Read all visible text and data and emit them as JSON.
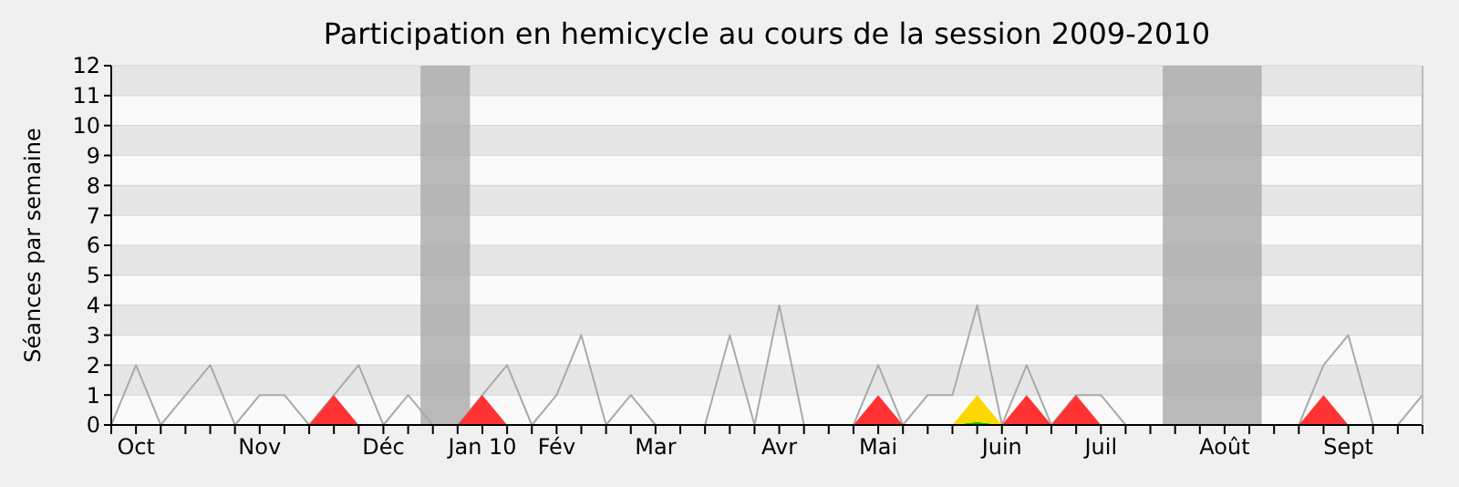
{
  "chart_data": {
    "type": "area",
    "title": "Participation en hemicycle au cours de la session 2009-2010",
    "ylabel": "Séances par semaine",
    "x": [
      "2009-09-28",
      "2009-10-05",
      "2009-10-12",
      "2009-10-19",
      "2009-10-26",
      "2009-11-02",
      "2009-11-09",
      "2009-11-16",
      "2009-11-23",
      "2009-11-30",
      "2009-12-07",
      "2009-12-14",
      "2009-12-21",
      "2009-12-28",
      "2010-01-04",
      "2010-01-11",
      "2010-01-18",
      "2010-01-25",
      "2010-02-01",
      "2010-02-08",
      "2010-02-15",
      "2010-02-22",
      "2010-03-01",
      "2010-03-08",
      "2010-03-15",
      "2010-03-22",
      "2010-03-29",
      "2010-04-05",
      "2010-04-12",
      "2010-04-19",
      "2010-04-26",
      "2010-05-03",
      "2010-05-10",
      "2010-05-17",
      "2010-05-24",
      "2010-05-31",
      "2010-06-07",
      "2010-06-14",
      "2010-06-21",
      "2010-06-28",
      "2010-07-05",
      "2010-07-12",
      "2010-07-19",
      "2010-07-26",
      "2010-08-02",
      "2010-08-09",
      "2010-08-16",
      "2010-08-23",
      "2010-08-30",
      "2010-09-06",
      "2010-09-13",
      "2010-09-20",
      "2010-09-27",
      "2010-10-04"
    ],
    "series": [
      {
        "color": "#ff3333",
        "values": [
          0,
          0,
          0,
          0,
          0,
          0,
          0,
          0,
          0,
          1,
          0,
          0,
          0,
          0,
          0,
          1,
          0,
          0,
          0,
          0,
          0,
          0,
          0,
          0,
          0,
          0,
          0,
          0,
          0,
          0,
          0,
          1,
          0,
          0,
          0,
          0,
          0,
          1,
          0,
          1,
          0,
          0,
          0,
          0,
          0,
          0,
          0,
          0,
          0,
          1,
          0,
          0,
          0,
          0
        ]
      },
      {
        "color": "#00c800",
        "values": [
          null,
          null,
          null,
          null,
          null,
          null,
          null,
          null,
          null,
          null,
          null,
          null,
          null,
          null,
          null,
          null,
          null,
          null,
          null,
          null,
          null,
          null,
          null,
          null,
          null,
          null,
          null,
          null,
          null,
          null,
          null,
          null,
          null,
          null,
          0,
          0.1,
          0,
          null,
          null,
          null,
          null,
          null,
          null,
          null,
          null,
          null,
          null,
          null,
          null,
          null,
          null,
          null,
          null,
          null
        ]
      },
      {
        "color": "#ffd700",
        "values": [
          null,
          null,
          null,
          null,
          null,
          null,
          null,
          null,
          null,
          null,
          null,
          null,
          null,
          null,
          null,
          null,
          null,
          null,
          null,
          null,
          null,
          null,
          null,
          null,
          null,
          null,
          null,
          null,
          null,
          null,
          null,
          null,
          null,
          null,
          0,
          0.9,
          0,
          null,
          null,
          null,
          null,
          null,
          null,
          null,
          null,
          null,
          null,
          null,
          null,
          null,
          null,
          null,
          null,
          null
        ]
      },
      {
        "type": "line",
        "color": "#aaaaaa",
        "values": [
          0,
          2,
          0,
          1,
          2,
          0,
          1,
          1,
          0,
          1,
          2,
          0,
          1,
          0,
          0,
          1,
          2,
          0,
          1,
          3,
          0,
          1,
          0,
          0,
          0,
          3,
          0,
          4,
          0,
          0,
          0,
          2,
          0,
          1,
          1,
          4,
          0,
          2,
          0,
          1,
          1,
          0,
          0,
          0,
          0,
          0,
          0,
          0,
          0,
          2,
          3,
          0,
          0,
          1
        ]
      }
    ],
    "bands": [
      {
        "axis": "x",
        "from": "2009-12-24T12:00",
        "to": "2010-01-07T12:00",
        "color": "#aaaaaa"
      },
      {
        "axis": "x",
        "from": "2010-07-22T12:00",
        "to": "2010-08-19T12:00",
        "color": "#aaaaaa"
      }
    ],
    "xlim": [
      "2009-09-28",
      "2010-10-04"
    ],
    "xticks": [
      {
        "value": "2009-09-28",
        "label": null
      },
      {
        "value": "2009-10-05",
        "label": "Oct"
      },
      {
        "value": "2009-10-12",
        "label": null
      },
      {
        "value": "2009-10-19",
        "label": null
      },
      {
        "value": "2009-10-26",
        "label": null
      },
      {
        "value": "2009-11-02",
        "label": null
      },
      {
        "value": "2009-11-09",
        "label": "Nov"
      },
      {
        "value": "2009-11-16",
        "label": null
      },
      {
        "value": "2009-11-23",
        "label": null
      },
      {
        "value": "2009-11-30",
        "label": null
      },
      {
        "value": "2009-12-07",
        "label": null
      },
      {
        "value": "2009-12-14",
        "label": "Déc"
      },
      {
        "value": "2009-12-21",
        "label": null
      },
      {
        "value": "2009-12-28",
        "label": null
      },
      {
        "value": "2010-01-04",
        "label": null
      },
      {
        "value": "2010-01-11",
        "label": "Jan 10"
      },
      {
        "value": "2010-01-18",
        "label": null
      },
      {
        "value": "2010-01-25",
        "label": null
      },
      {
        "value": "2010-02-01",
        "label": "Fév"
      },
      {
        "value": "2010-02-08",
        "label": null
      },
      {
        "value": "2010-02-15",
        "label": null
      },
      {
        "value": "2010-02-22",
        "label": null
      },
      {
        "value": "2010-03-01",
        "label": "Mar"
      },
      {
        "value": "2010-03-08",
        "label": null
      },
      {
        "value": "2010-03-15",
        "label": null
      },
      {
        "value": "2010-03-22",
        "label": null
      },
      {
        "value": "2010-03-29",
        "label": null
      },
      {
        "value": "2010-04-05",
        "label": "Avr"
      },
      {
        "value": "2010-04-12",
        "label": null
      },
      {
        "value": "2010-04-19",
        "label": null
      },
      {
        "value": "2010-04-26",
        "label": null
      },
      {
        "value": "2010-05-03",
        "label": "Mai"
      },
      {
        "value": "2010-05-10",
        "label": null
      },
      {
        "value": "2010-05-17",
        "label": null
      },
      {
        "value": "2010-05-24",
        "label": null
      },
      {
        "value": "2010-05-31",
        "label": null
      },
      {
        "value": "2010-06-07",
        "label": "Juin"
      },
      {
        "value": "2010-06-14",
        "label": null
      },
      {
        "value": "2010-06-21",
        "label": null
      },
      {
        "value": "2010-06-28",
        "label": null
      },
      {
        "value": "2010-07-05",
        "label": "Juil"
      },
      {
        "value": "2010-07-12",
        "label": null
      },
      {
        "value": "2010-07-19",
        "label": null
      },
      {
        "value": "2010-07-26",
        "label": null
      },
      {
        "value": "2010-08-02",
        "label": null
      },
      {
        "value": "2010-08-09",
        "label": "Août"
      },
      {
        "value": "2010-08-16",
        "label": null
      },
      {
        "value": "2010-08-23",
        "label": null
      },
      {
        "value": "2010-08-30",
        "label": null
      },
      {
        "value": "2010-09-06",
        "label": null
      },
      {
        "value": "2010-09-13",
        "label": "Sept"
      },
      {
        "value": "2010-09-20",
        "label": null
      },
      {
        "value": "2010-09-27",
        "label": null
      },
      {
        "value": "2010-10-04",
        "label": null
      }
    ],
    "ylim": [
      0,
      12
    ],
    "yticks": [
      0,
      1,
      2,
      3,
      4,
      5,
      6,
      7,
      8,
      9,
      10,
      11,
      12
    ],
    "stacked": true,
    "grid": "y",
    "marker": "none"
  }
}
